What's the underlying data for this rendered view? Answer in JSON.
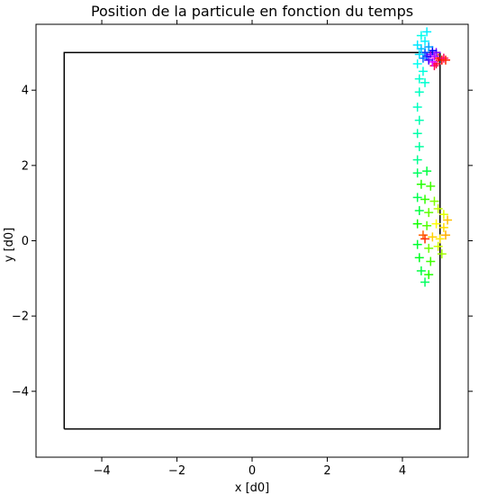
{
  "chart_data": {
    "type": "scatter",
    "title": "Position de la particule en fonction du temps",
    "xlabel": "x [d0]",
    "ylabel": "y [d0]",
    "xlim": [
      -5.75,
      5.75
    ],
    "ylim": [
      -5.75,
      5.75
    ],
    "xticks": [
      -4,
      -2,
      0,
      2,
      4
    ],
    "yticks": [
      -4,
      -2,
      0,
      2,
      4
    ],
    "xtick_labels": [
      "−4",
      "−2",
      "0",
      "2",
      "4"
    ],
    "ytick_labels": [
      "−4",
      "−2",
      "0",
      "2",
      "4"
    ],
    "grid": false,
    "marker": "+",
    "colormap": "hsv (color encodes time)",
    "box": {
      "x": [
        -5,
        5,
        5,
        -5,
        -5
      ],
      "y": [
        -5,
        -5,
        5,
        5,
        -5
      ],
      "color": "#000000"
    },
    "clusters": [
      {
        "description": "top-right corner cluster",
        "points": [
          {
            "x": 4.95,
            "y": 4.85,
            "color": "#ff0000"
          },
          {
            "x": 5.05,
            "y": 4.8,
            "color": "#ff0000"
          },
          {
            "x": 4.9,
            "y": 4.7,
            "color": "#ff0030"
          },
          {
            "x": 4.85,
            "y": 4.65,
            "color": "#ff0050"
          },
          {
            "x": 5.1,
            "y": 4.85,
            "color": "#ff0060"
          },
          {
            "x": 5.15,
            "y": 4.8,
            "color": "#ff2000"
          },
          {
            "x": 4.8,
            "y": 4.75,
            "color": "#e000ff"
          },
          {
            "x": 4.85,
            "y": 4.9,
            "color": "#c000ff"
          },
          {
            "x": 4.75,
            "y": 4.95,
            "color": "#a000ff"
          },
          {
            "x": 4.9,
            "y": 5.0,
            "color": "#8000ff"
          },
          {
            "x": 4.7,
            "y": 4.8,
            "color": "#4000ff"
          },
          {
            "x": 4.65,
            "y": 4.9,
            "color": "#2000ff"
          },
          {
            "x": 4.8,
            "y": 5.05,
            "color": "#0000ff"
          },
          {
            "x": 4.6,
            "y": 5.0,
            "color": "#0040ff"
          },
          {
            "x": 4.55,
            "y": 4.85,
            "color": "#0070ff"
          },
          {
            "x": 4.7,
            "y": 5.15,
            "color": "#00a0ff"
          },
          {
            "x": 4.5,
            "y": 5.1,
            "color": "#00c0ff"
          },
          {
            "x": 4.45,
            "y": 4.95,
            "color": "#00e0ff"
          },
          {
            "x": 4.6,
            "y": 5.3,
            "color": "#00f0ff"
          },
          {
            "x": 4.4,
            "y": 4.7,
            "color": "#00fff0"
          },
          {
            "x": 4.55,
            "y": 4.5,
            "color": "#00ffe0"
          },
          {
            "x": 4.45,
            "y": 4.3,
            "color": "#00ffd0"
          },
          {
            "x": 4.6,
            "y": 4.2,
            "color": "#00ffd0"
          },
          {
            "x": 4.5,
            "y": 5.45,
            "color": "#00ffe8"
          },
          {
            "x": 4.65,
            "y": 5.55,
            "color": "#00f0ff"
          },
          {
            "x": 4.4,
            "y": 5.2,
            "color": "#00e8ff"
          }
        ]
      },
      {
        "description": "trail between clusters",
        "points": [
          {
            "x": 4.45,
            "y": 3.95,
            "color": "#00ffc0"
          },
          {
            "x": 4.4,
            "y": 3.55,
            "color": "#00ffc0"
          },
          {
            "x": 4.45,
            "y": 3.2,
            "color": "#00ffb0"
          },
          {
            "x": 4.4,
            "y": 2.85,
            "color": "#00ffa8"
          },
          {
            "x": 4.45,
            "y": 2.5,
            "color": "#00ffa0"
          },
          {
            "x": 4.4,
            "y": 2.15,
            "color": "#00ff90"
          }
        ]
      },
      {
        "description": "right-middle cluster",
        "points": [
          {
            "x": 4.4,
            "y": 1.8,
            "color": "#00ff60"
          },
          {
            "x": 4.65,
            "y": 1.85,
            "color": "#00ff40"
          },
          {
            "x": 4.5,
            "y": 1.5,
            "color": "#20ff00"
          },
          {
            "x": 4.75,
            "y": 1.45,
            "color": "#40ff00"
          },
          {
            "x": 4.4,
            "y": 1.15,
            "color": "#00ff50"
          },
          {
            "x": 4.6,
            "y": 1.1,
            "color": "#30ff00"
          },
          {
            "x": 4.85,
            "y": 1.05,
            "color": "#80ff00"
          },
          {
            "x": 4.45,
            "y": 0.8,
            "color": "#00ff40"
          },
          {
            "x": 4.7,
            "y": 0.75,
            "color": "#60ff00"
          },
          {
            "x": 4.95,
            "y": 0.85,
            "color": "#c0ff00"
          },
          {
            "x": 5.1,
            "y": 0.7,
            "color": "#e0ff00"
          },
          {
            "x": 4.4,
            "y": 0.45,
            "color": "#10ff00"
          },
          {
            "x": 4.65,
            "y": 0.4,
            "color": "#50ff00"
          },
          {
            "x": 4.9,
            "y": 0.45,
            "color": "#ffff00"
          },
          {
            "x": 5.1,
            "y": 0.35,
            "color": "#ffe000"
          },
          {
            "x": 5.2,
            "y": 0.55,
            "color": "#ffc000"
          },
          {
            "x": 4.55,
            "y": 0.15,
            "color": "#ff6000"
          },
          {
            "x": 4.6,
            "y": 0.05,
            "color": "#ff3000"
          },
          {
            "x": 4.8,
            "y": 0.1,
            "color": "#ffd000"
          },
          {
            "x": 5.0,
            "y": 0.05,
            "color": "#ffe800"
          },
          {
            "x": 5.15,
            "y": 0.15,
            "color": "#ffb000"
          },
          {
            "x": 4.4,
            "y": -0.1,
            "color": "#00ff30"
          },
          {
            "x": 4.7,
            "y": -0.2,
            "color": "#70ff00"
          },
          {
            "x": 4.95,
            "y": -0.15,
            "color": "#d0ff00"
          },
          {
            "x": 5.05,
            "y": -0.35,
            "color": "#a0ff00"
          },
          {
            "x": 4.45,
            "y": -0.45,
            "color": "#00ff20"
          },
          {
            "x": 4.75,
            "y": -0.55,
            "color": "#40ff00"
          },
          {
            "x": 4.5,
            "y": -0.8,
            "color": "#00ff40"
          },
          {
            "x": 4.7,
            "y": -0.9,
            "color": "#20ff00"
          },
          {
            "x": 4.6,
            "y": -1.1,
            "color": "#00ff60"
          }
        ]
      }
    ]
  }
}
